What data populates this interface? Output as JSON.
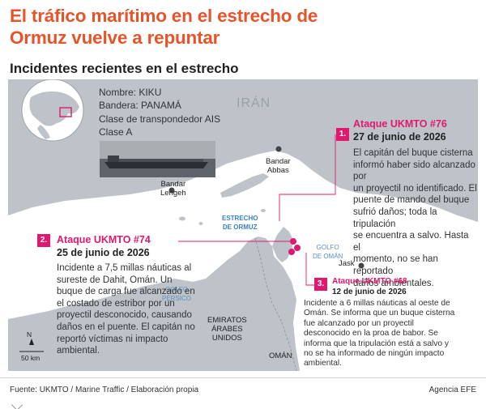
{
  "headline": {
    "line1": "El tráfico marítimo en el estrecho de",
    "line2": "Ormuz vuelve a repuntar"
  },
  "subhead": "Incidentes recientes en el estrecho",
  "ship": {
    "name": "Nombre: KIKU",
    "flag": "Bandera: PANAMÁ",
    "ais_label": "Clase de transpondedor AIS",
    "ais_class": "Clase A"
  },
  "places": {
    "iran": "IRÁN",
    "bandar_abbas_1": "Bandar",
    "bandar_abbas_2": "Abbas",
    "bandar_lengeh_1": "Bandar",
    "bandar_lengeh_2": "Lengeh",
    "strait_1": "ESTRECHO",
    "strait_2": "DE ORMUZ",
    "gulf_oman_1": "GOLFO",
    "gulf_oman_2": "DE OMÁN",
    "persian_gulf_1": "GOLFO",
    "persian_gulf_2": "PÉRSICO",
    "jask": "Jask",
    "uae_1": "EMIRATOS",
    "uae_2": "ÁRABES",
    "uae_3": "UNIDOS",
    "oman": "OMÁN"
  },
  "incidents": [
    {
      "number": "1.",
      "title": "Ataque UKMTO #76",
      "date": "27 de junio de 2026",
      "lines": [
        "El capitán del buque cisterna",
        "informó haber sido alcanzado por",
        "un proyectil no identificado. El",
        "puente de mando del buque",
        "sufrió daños; toda la tripulación",
        "se encuentra a salvo. Hasta el",
        "momento, no se han reportado",
        "daños ambientales."
      ]
    },
    {
      "number": "2.",
      "title": "Ataque UKMTO #74",
      "date": "25 de junio de 2026",
      "lines": [
        "Incidente a 7,5 millas náuticas al",
        "sureste de Dahit, Omán. Un",
        "buque de carga fue alcanzado en",
        "el costado de estribor por un",
        "proyectil desconocido, causando",
        "daños en el puente. El capitán no",
        "reportó víctimas ni impacto",
        "ambiental."
      ]
    },
    {
      "number": "3.",
      "title": "Ataque UKMTO #68",
      "date": "12 de junio de 2026",
      "lines": [
        "Incidente a 6 millas náuticas al oeste de",
        "Omán. Se informa que un buque cisterna",
        "fue alcanzado por un proyectil",
        "desconocido en la proa de babor. Se",
        "informa que la tripulación está a salvo y",
        "no se ha informado de ningún impacto",
        "ambiental."
      ]
    }
  ],
  "scale": {
    "north": "N",
    "distance": "50 km"
  },
  "footer": {
    "source": "Fuente: UKMTO / Marine Traffic / Elaboración propia",
    "agency": "Agencia EFE"
  },
  "colors": {
    "headline": "#e8542a",
    "accent": "#e0196e",
    "land": "#bdc3c8",
    "water": "#ffffff"
  }
}
